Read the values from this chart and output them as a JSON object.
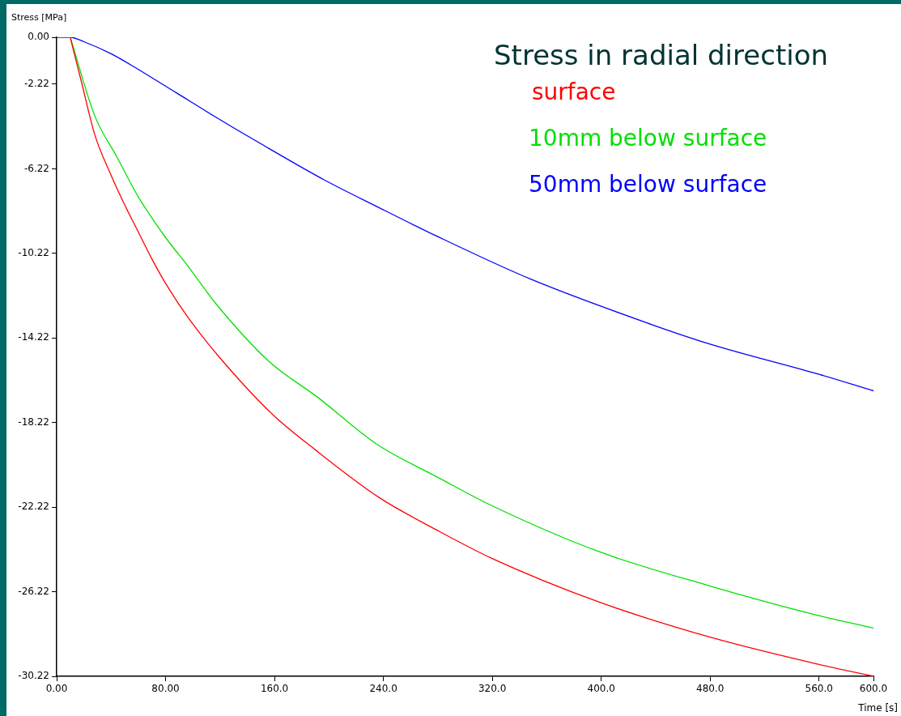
{
  "chart_data": {
    "type": "line",
    "title": "Stress in radial direction",
    "xlabel": "Time [s]",
    "ylabel": "Stress [MPa]",
    "xlim": [
      0,
      600
    ],
    "ylim": [
      -30.22,
      0
    ],
    "xticks": [
      {
        "value": 0,
        "label": "0.00"
      },
      {
        "value": 80,
        "label": "80.00"
      },
      {
        "value": 160,
        "label": "160.0"
      },
      {
        "value": 240,
        "label": "240.0"
      },
      {
        "value": 320,
        "label": "320.0"
      },
      {
        "value": 400,
        "label": "400.0"
      },
      {
        "value": 480,
        "label": "480.0"
      },
      {
        "value": 560,
        "label": "560.0"
      },
      {
        "value": 600,
        "label": "600.0"
      }
    ],
    "yticks": [
      {
        "value": 0,
        "label": "0.00"
      },
      -2.22,
      -6.22,
      -10.22,
      -14.22,
      -18.22,
      -22.22,
      -26.22,
      -30.22
    ],
    "grid": false,
    "legend": "top right",
    "marker": "none",
    "line_style": "solid",
    "series": [
      {
        "name": "surface",
        "color": "#ff0000",
        "x": [
          10,
          12,
          18,
          28,
          40,
          50,
          60,
          70,
          80,
          97,
          119,
          158,
          190,
          237,
          280,
          319,
          399,
          480,
          560,
          600
        ],
        "values": [
          0,
          -0.53,
          -2.06,
          -4.61,
          -6.53,
          -7.93,
          -9.21,
          -10.49,
          -11.64,
          -13.3,
          -15.09,
          -17.8,
          -19.51,
          -21.77,
          -23.33,
          -24.62,
          -26.72,
          -28.37,
          -29.66,
          -30.22
        ]
      },
      {
        "name": "10mm below surface",
        "color": "#00e000",
        "x": [
          10,
          28,
          44,
          60,
          80,
          97,
          117,
          156,
          192,
          235,
          280,
          319,
          399,
          480,
          560,
          600
        ],
        "values": [
          0,
          -3.72,
          -5.63,
          -7.55,
          -9.47,
          -10.87,
          -12.6,
          -15.33,
          -17.04,
          -19.24,
          -20.81,
          -22.13,
          -24.34,
          -25.95,
          -27.35,
          -27.94
        ]
      },
      {
        "name": "50mm below surface",
        "color": "#0000ff",
        "x": [
          0,
          10,
          20,
          40,
          60,
          88,
          117,
          149,
          197,
          235,
          280,
          349,
          436,
          480,
          560,
          600
        ],
        "values": [
          0,
          0,
          -0.21,
          -0.78,
          -1.52,
          -2.63,
          -3.78,
          -5.0,
          -6.76,
          -8.0,
          -9.43,
          -11.46,
          -13.56,
          -14.51,
          -15.94,
          -16.72
        ]
      }
    ]
  }
}
